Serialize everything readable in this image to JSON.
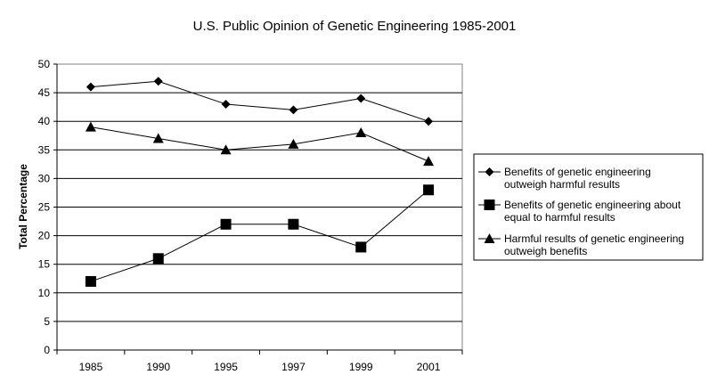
{
  "chart_data": {
    "type": "line",
    "title": "U.S. Public Opinion of Genetic Engineering 1985-2001",
    "xlabel": "",
    "ylabel": "Total Percentage",
    "categories": [
      "1985",
      "1990",
      "1995",
      "1997",
      "1999",
      "2001"
    ],
    "ylim": [
      0,
      50
    ],
    "yticks": [
      "0",
      "5",
      "10",
      "15",
      "20",
      "25",
      "30",
      "35",
      "40",
      "45",
      "50"
    ],
    "grid": "horizontal",
    "legend_position": "right",
    "series": [
      {
        "name": "Benefits of genetic engineering outweigh harmful results",
        "name_lines": [
          "Benefits of genetic engineering",
          "outweigh harmful results"
        ],
        "marker": "diamond",
        "values": [
          46,
          47,
          43,
          42,
          44,
          40
        ]
      },
      {
        "name": "Benefits of genetic engineering about equal to harmful results",
        "name_lines": [
          "Benefits of genetic engineering about",
          "equal to harmful results"
        ],
        "marker": "square",
        "values": [
          12,
          16,
          22,
          22,
          18,
          28
        ]
      },
      {
        "name": "Harmful results of genetic engineering outweigh benefits",
        "name_lines": [
          "Harmful results of genetic engineering",
          "outweigh benefits"
        ],
        "marker": "triangle",
        "values": [
          39,
          37,
          35,
          36,
          38,
          33
        ]
      }
    ]
  }
}
